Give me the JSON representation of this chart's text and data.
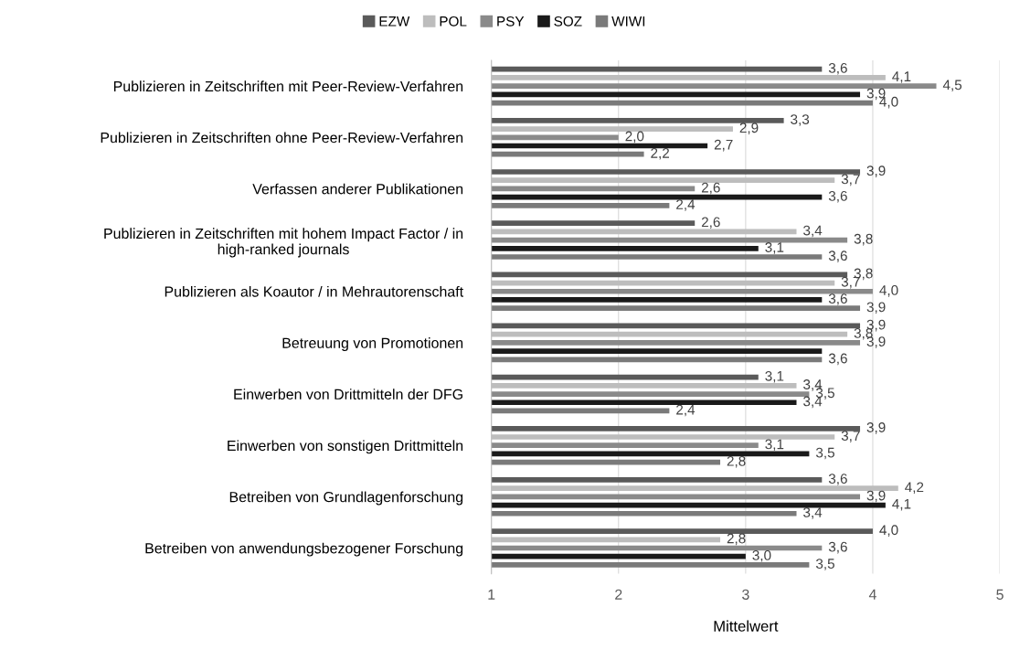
{
  "chart_data": {
    "type": "bar",
    "orientation": "horizontal",
    "xlabel": "Mittelwert",
    "categories": [
      "Publizieren in Zeitschriften mit Peer-Review-Verfahren",
      "Publizieren in Zeitschriften ohne Peer-Review-Verfahren",
      "Verfassen anderer Publikationen",
      "Publizieren in Zeitschriften mit hohem Impact Factor / in\nhigh-ranked journals",
      "Publizieren als Koautor / in Mehrautorenschaft",
      "Betreuung von Promotionen",
      "Einwerben von Drittmitteln der DFG",
      "Einwerben von sonstigen Drittmitteln",
      "Betreiben von Grundlagenforschung",
      "Betreiben von anwendungsbezogener Forschung"
    ],
    "series": [
      {
        "name": "EZW",
        "color": "#5a5a5a",
        "values": [
          3.6,
          3.3,
          3.9,
          2.6,
          3.8,
          3.9,
          3.1,
          3.9,
          3.6,
          4.0
        ],
        "value_labels": [
          "3,6",
          "3,3",
          "3,9",
          "2,6",
          "3,8",
          "3,9",
          "3,1",
          "3,9",
          "3,6",
          "4,0"
        ]
      },
      {
        "name": "POL",
        "color": "#bdbdbd",
        "values": [
          4.1,
          2.9,
          3.7,
          3.4,
          3.7,
          3.8,
          3.4,
          3.7,
          4.2,
          2.8
        ],
        "value_labels": [
          "4,1",
          "2,9",
          "3,7",
          "3,4",
          "3,7",
          "3,8",
          "3,4",
          "3,7",
          "4,2",
          "2,8"
        ]
      },
      {
        "name": "PSY",
        "color": "#8a8a8a",
        "values": [
          4.5,
          2.0,
          2.6,
          3.8,
          4.0,
          3.9,
          3.5,
          3.1,
          3.9,
          3.6
        ],
        "value_labels": [
          "4,5",
          "2,0",
          "2,6",
          "3,8",
          "4,0",
          "3,9",
          "3,5",
          "3,1",
          "3,9",
          "3,6"
        ]
      },
      {
        "name": "SOZ",
        "color": "#1a1a1a",
        "values": [
          3.9,
          2.7,
          3.6,
          3.1,
          3.6,
          3.6,
          3.4,
          3.5,
          4.1,
          3.0
        ],
        "value_labels": [
          "3,9",
          "2,7",
          "3,6",
          "3,1",
          "3,6",
          null,
          "3,4",
          "3,5",
          "4,1",
          "3,0"
        ]
      },
      {
        "name": "WIWI",
        "color": "#7a7a7a",
        "values": [
          4.0,
          2.2,
          2.4,
          3.6,
          3.9,
          3.6,
          2.4,
          2.8,
          3.4,
          3.5
        ],
        "value_labels": [
          "4,0",
          "2,2",
          "2,4",
          "3,6",
          "3,9",
          "3,6",
          "2,4",
          "2,8",
          "3,4",
          "3,5"
        ]
      }
    ],
    "xlim": [
      1,
      5
    ],
    "xticks": [
      1,
      2,
      3,
      4,
      5
    ],
    "grid": "x",
    "legend": "top"
  }
}
